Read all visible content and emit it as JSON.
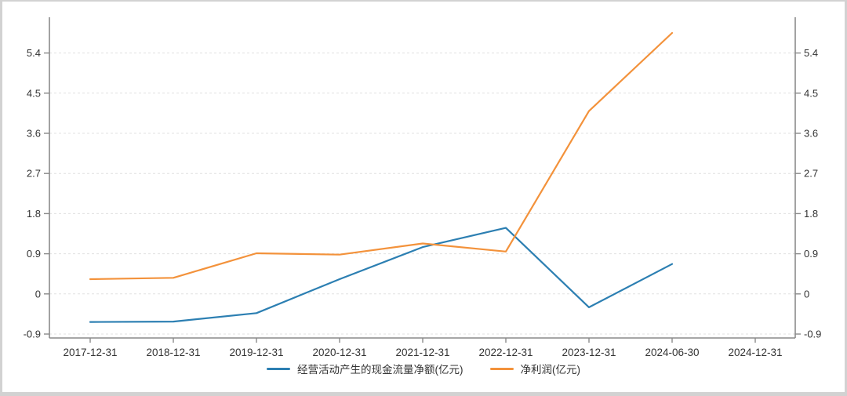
{
  "chart_data": {
    "type": "line",
    "title": "",
    "xlabel": "",
    "ylabel": "",
    "categories": [
      "2017-12-31",
      "2018-12-31",
      "2019-12-31",
      "2020-12-31",
      "2021-12-31",
      "2022-12-31",
      "2023-12-31",
      "2024-06-30",
      "2024-12-31"
    ],
    "series": [
      {
        "name": "经营活动产生的现金流量净额(亿元)",
        "color": "#2c7fb2",
        "values": [
          -0.63,
          -0.62,
          -0.43,
          0.33,
          1.05,
          1.48,
          -0.3,
          0.67,
          null
        ]
      },
      {
        "name": "净利润(亿元)",
        "color": "#f3923b",
        "values": [
          0.33,
          0.36,
          0.91,
          0.88,
          1.13,
          0.95,
          4.1,
          5.85,
          null
        ]
      }
    ],
    "y_ticks": [
      -0.9,
      0,
      0.9,
      1.8,
      2.7,
      3.6,
      4.5,
      5.4
    ],
    "ylim": [
      -0.9,
      6.2
    ],
    "dual_axis": "left and right y-axes share identical scale and tick labels",
    "grid": "horizontal dashed gridlines at each y tick",
    "legend_position": "bottom-center",
    "colors": {
      "axis_line": "#8a8a8a",
      "grid_line": "#e0e0e0",
      "tick_label": "#333333",
      "background": "#ffffff",
      "frame_border": "#d2d2d2"
    }
  },
  "legend": {
    "items": [
      {
        "label": "经营活动产生的现金流量净额(亿元)"
      },
      {
        "label": "净利润(亿元)"
      }
    ]
  }
}
